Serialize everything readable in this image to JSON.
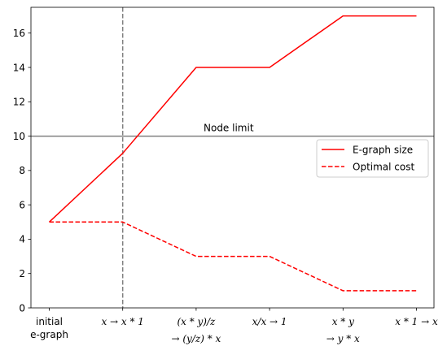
{
  "chart_data": {
    "type": "line",
    "categories": [
      [
        "initial",
        "e-graph"
      ],
      [
        "x → x * 1"
      ],
      [
        "(x * y)/z",
        "→ (y/z) * x"
      ],
      [
        "x/x → 1"
      ],
      [
        "x * y",
        "→ y * x"
      ],
      [
        "x * 1 → x"
      ]
    ],
    "series": [
      {
        "name": "E-graph size",
        "values": [
          5,
          9,
          14,
          14,
          17,
          17
        ],
        "color": "#ff0000",
        "dash": "solid"
      },
      {
        "name": "Optimal cost",
        "values": [
          5,
          5,
          3,
          3,
          1,
          1
        ],
        "color": "#ff0000",
        "dash": "dashed"
      }
    ],
    "ylim": [
      0,
      17.5
    ],
    "yticks": [
      0,
      2,
      4,
      6,
      8,
      10,
      12,
      14,
      16
    ],
    "hline": {
      "value": 10,
      "label": "Node limit",
      "color": "#808080"
    },
    "vline": {
      "category_index": 1,
      "color": "#808080",
      "dash": "dashed"
    },
    "legend_position": "center-right",
    "grid": false,
    "title": "",
    "xlabel": "",
    "ylabel": ""
  }
}
